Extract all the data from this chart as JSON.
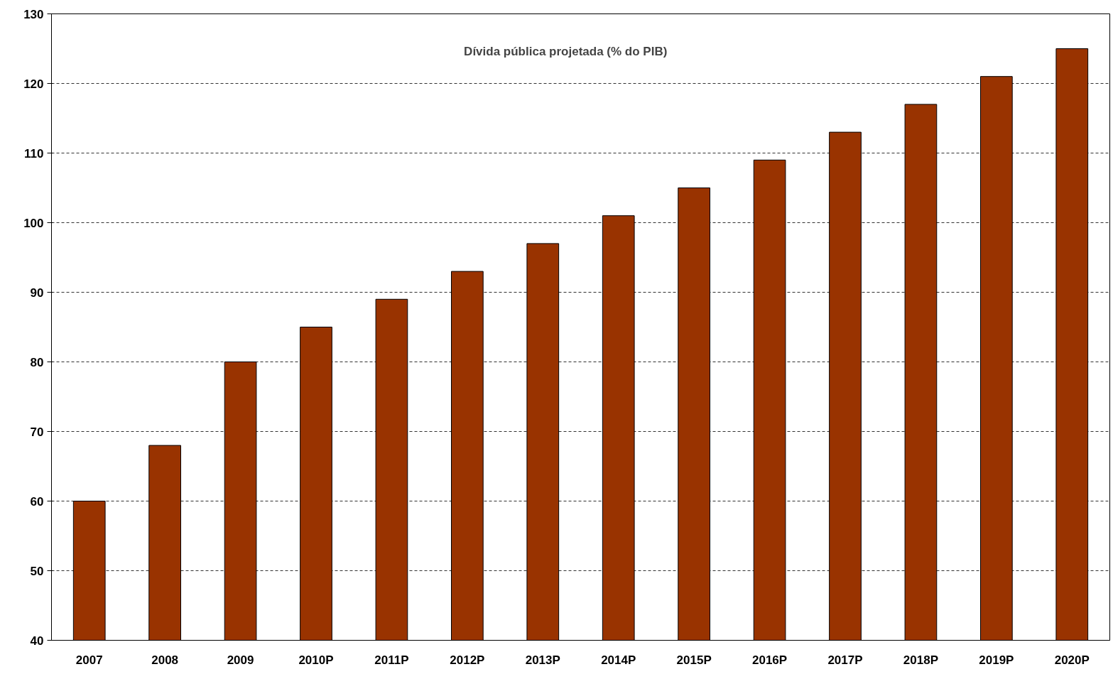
{
  "chart_data": {
    "type": "bar",
    "title": "Dívida pública projetada (% do PIB)",
    "categories": [
      "2007",
      "2008",
      "2009",
      "2010P",
      "2011P",
      "2012P",
      "2013P",
      "2014P",
      "2015P",
      "2016P",
      "2017P",
      "2018P",
      "2019P",
      "2020P"
    ],
    "values": [
      60,
      68,
      80,
      85,
      89,
      93,
      97,
      101,
      105,
      109,
      113,
      117,
      121,
      125
    ],
    "color": "#993300",
    "ylim": [
      40,
      130
    ],
    "yticks": [
      40,
      50,
      60,
      70,
      80,
      90,
      100,
      110,
      120,
      130
    ],
    "grid": "y"
  }
}
